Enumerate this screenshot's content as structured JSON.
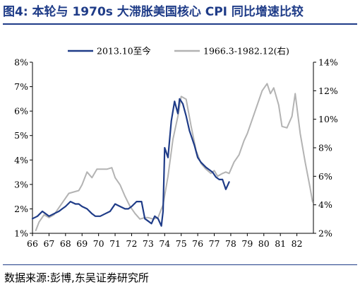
{
  "header": {
    "title": "图4:  本轮与 1970s 大滞胀美国核心 CPI 同比增速比较"
  },
  "footer": {
    "source": "数据来源:彭博,东吴证券研究所"
  },
  "colors": {
    "title": "#1f3c88",
    "series_current": "#1f3c88",
    "series_1970s": "#b3b3b3"
  },
  "chart_data": {
    "type": "line",
    "title": "",
    "xlabel": "",
    "ylabel": "",
    "y2label": "",
    "xlim": [
      66,
      83
    ],
    "ylim": [
      1,
      8
    ],
    "y2lim": [
      2,
      14
    ],
    "x_ticks": [
      "66",
      "67",
      "68",
      "69",
      "70",
      "71",
      "72",
      "73",
      "74",
      "75",
      "76",
      "77",
      "78",
      "79",
      "80",
      "81",
      "82"
    ],
    "y_ticks": [
      "1%",
      "2%",
      "3%",
      "4%",
      "5%",
      "6%",
      "7%",
      "8%"
    ],
    "y2_ticks": [
      "2%",
      "4%",
      "6%",
      "8%",
      "10%",
      "12%",
      "14%"
    ],
    "grid": false,
    "legend": "top",
    "series": [
      {
        "name": "2013.10至今",
        "axis": "left",
        "color": "#1f3c88",
        "x": [
          66.0,
          66.3,
          66.6,
          66.8,
          67.0,
          67.3,
          67.6,
          67.8,
          68.0,
          68.3,
          68.6,
          68.8,
          69.0,
          69.3,
          69.6,
          69.8,
          70.1,
          70.4,
          70.7,
          70.8,
          71.0,
          71.3,
          71.6,
          71.8,
          72.0,
          72.3,
          72.6,
          72.8,
          73.0,
          73.2,
          73.4,
          73.6,
          73.8,
          73.9,
          74.0,
          74.2,
          74.4,
          74.6,
          74.8,
          74.9,
          75.0,
          75.1,
          75.3,
          75.5,
          75.8,
          76.0,
          76.2,
          76.5,
          76.7,
          76.9,
          77.1,
          77.3,
          77.5,
          77.7,
          77.9
        ],
        "y": [
          1.6,
          1.7,
          1.9,
          1.8,
          1.7,
          1.8,
          1.9,
          2.0,
          2.1,
          2.3,
          2.2,
          2.2,
          2.1,
          2.0,
          1.8,
          1.7,
          1.7,
          1.8,
          1.9,
          2.0,
          2.2,
          2.1,
          2.0,
          2.0,
          2.1,
          2.3,
          2.3,
          1.6,
          1.5,
          1.4,
          1.7,
          1.6,
          1.3,
          1.9,
          4.5,
          4.1,
          5.6,
          6.4,
          5.9,
          6.5,
          6.4,
          6.3,
          5.8,
          5.2,
          4.6,
          4.1,
          3.9,
          3.7,
          3.6,
          3.5,
          3.3,
          3.2,
          3.2,
          2.8,
          3.1
        ]
      },
      {
        "name": "1966.3-1982.12(右)",
        "axis": "right",
        "color": "#b3b3b3",
        "x": [
          66.2,
          66.4,
          66.7,
          67.0,
          67.3,
          67.6,
          67.9,
          68.2,
          68.5,
          68.8,
          69.0,
          69.3,
          69.6,
          69.9,
          70.2,
          70.5,
          70.8,
          71.0,
          71.3,
          71.6,
          71.9,
          72.2,
          72.5,
          72.8,
          73.0,
          73.3,
          73.6,
          73.9,
          74.2,
          74.5,
          74.8,
          75.0,
          75.3,
          75.6,
          75.9,
          76.2,
          76.5,
          76.8,
          77.0,
          77.2,
          77.5,
          77.7,
          77.9,
          78.2,
          78.5,
          78.8,
          79.0,
          79.3,
          79.6,
          79.9,
          80.2,
          80.4,
          80.6,
          80.9,
          81.1,
          81.4,
          81.7,
          81.9,
          82.2,
          82.5,
          82.8,
          82.95
        ],
        "y": [
          2.2,
          2.8,
          3.3,
          3.1,
          3.3,
          3.8,
          4.3,
          4.8,
          4.9,
          5.0,
          5.4,
          6.3,
          5.9,
          6.5,
          6.5,
          6.5,
          6.6,
          5.9,
          5.4,
          4.6,
          3.9,
          3.4,
          3.0,
          3.1,
          3.1,
          3.0,
          3.1,
          4.0,
          6.0,
          8.6,
          10.2,
          11.6,
          11.4,
          9.5,
          7.8,
          6.9,
          6.5,
          6.2,
          6.4,
          6.0,
          6.2,
          6.3,
          6.2,
          7.0,
          7.5,
          8.5,
          9.0,
          10.0,
          11.0,
          12.0,
          12.5,
          11.8,
          12.2,
          11.0,
          9.5,
          9.4,
          10.2,
          11.8,
          9.0,
          7.0,
          5.2,
          4.2
        ]
      }
    ]
  }
}
